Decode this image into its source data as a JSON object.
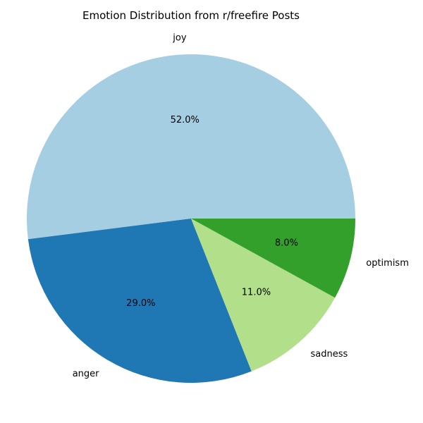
{
  "chart_data": {
    "type": "pie",
    "title": "Emotion Distribution from r/freefire Posts",
    "categories": [
      "joy",
      "anger",
      "sadness",
      "optimism"
    ],
    "values": [
      52.0,
      29.0,
      11.0,
      8.0
    ],
    "percent_labels": [
      "52.0%",
      "29.0%",
      "11.0%",
      "8.0%"
    ],
    "colors": [
      "#a6cee3",
      "#1f78b4",
      "#b2df8a",
      "#33a02c"
    ],
    "start_angle_deg": 0,
    "direction": "counterclockwise",
    "legend": "none"
  }
}
